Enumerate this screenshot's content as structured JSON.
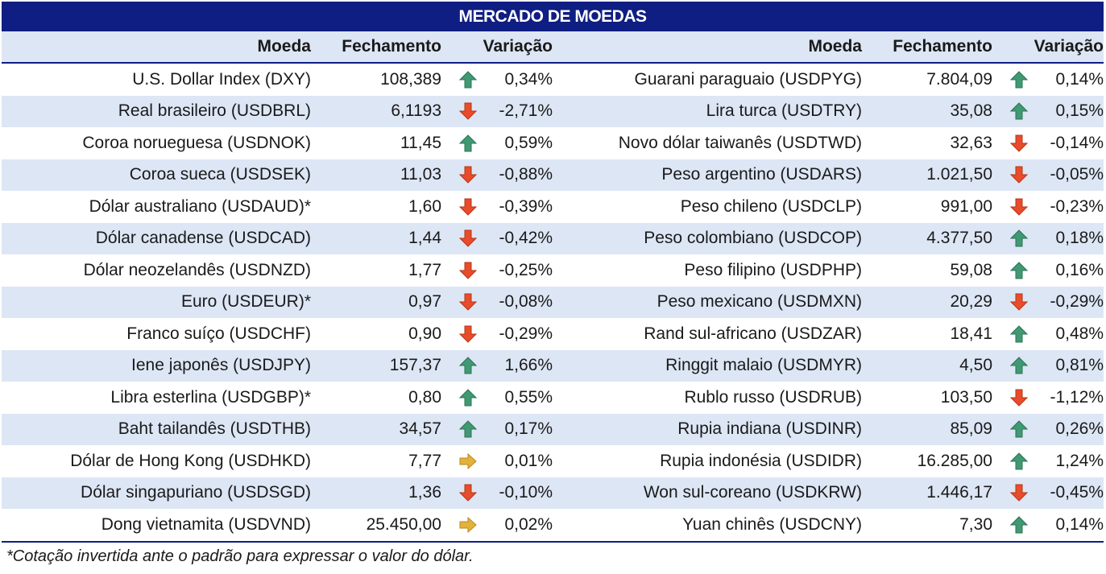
{
  "title": "MERCADO DE MOEDAS",
  "headers": {
    "moeda": "Moeda",
    "fechamento": "Fechamento",
    "variacao": "Variação"
  },
  "colors": {
    "header_bg": "#0f1e82",
    "alt_row": "#dde6f5",
    "up": "#3f9a73",
    "down": "#e84c2a",
    "flat": "#e3b23c"
  },
  "left": [
    {
      "name": "U.S. Dollar Index (DXY)",
      "close": "108,389",
      "dir": "up",
      "var": "0,34%"
    },
    {
      "name": "Real brasileiro (USDBRL)",
      "close": "6,1193",
      "dir": "down",
      "var": "-2,71%"
    },
    {
      "name": "Coroa norueguesa (USDNOK)",
      "close": "11,45",
      "dir": "up",
      "var": "0,59%"
    },
    {
      "name": "Coroa sueca (USDSEK)",
      "close": "11,03",
      "dir": "down",
      "var": "-0,88%"
    },
    {
      "name": "Dólar australiano (USDAUD)*",
      "close": "1,60",
      "dir": "down",
      "var": "-0,39%"
    },
    {
      "name": "Dólar canadense (USDCAD)",
      "close": "1,44",
      "dir": "down",
      "var": "-0,42%"
    },
    {
      "name": "Dólar neozelandês (USDNZD)",
      "close": "1,77",
      "dir": "down",
      "var": "-0,25%"
    },
    {
      "name": "Euro (USDEUR)*",
      "close": "0,97",
      "dir": "down",
      "var": "-0,08%"
    },
    {
      "name": "Franco suíço (USDCHF)",
      "close": "0,90",
      "dir": "down",
      "var": "-0,29%"
    },
    {
      "name": "Iene japonês (USDJPY)",
      "close": "157,37",
      "dir": "up",
      "var": "1,66%"
    },
    {
      "name": "Libra esterlina (USDGBP)*",
      "close": "0,80",
      "dir": "up",
      "var": "0,55%"
    },
    {
      "name": "Baht tailandês (USDTHB)",
      "close": "34,57",
      "dir": "up",
      "var": "0,17%"
    },
    {
      "name": "Dólar de Hong Kong (USDHKD)",
      "close": "7,77",
      "dir": "flat",
      "var": "0,01%"
    },
    {
      "name": "Dólar singapuriano (USDSGD)",
      "close": "1,36",
      "dir": "down",
      "var": "-0,10%"
    },
    {
      "name": "Dong vietnamita (USDVND)",
      "close": "25.450,00",
      "dir": "flat",
      "var": "0,02%"
    }
  ],
  "right": [
    {
      "name": "Guarani paraguaio (USDPYG)",
      "close": "7.804,09",
      "dir": "up",
      "var": "0,14%"
    },
    {
      "name": "Lira turca (USDTRY)",
      "close": "35,08",
      "dir": "up",
      "var": "0,15%"
    },
    {
      "name": "Novo dólar taiwanês (USDTWD)",
      "close": "32,63",
      "dir": "down",
      "var": "-0,14%"
    },
    {
      "name": "Peso argentino (USDARS)",
      "close": "1.021,50",
      "dir": "down",
      "var": "-0,05%"
    },
    {
      "name": "Peso chileno (USDCLP)",
      "close": "991,00",
      "dir": "down",
      "var": "-0,23%"
    },
    {
      "name": "Peso colombiano (USDCOP)",
      "close": "4.377,50",
      "dir": "up",
      "var": "0,18%"
    },
    {
      "name": "Peso filipino (USDPHP)",
      "close": "59,08",
      "dir": "up",
      "var": "0,16%"
    },
    {
      "name": "Peso mexicano (USDMXN)",
      "close": "20,29",
      "dir": "down",
      "var": "-0,29%"
    },
    {
      "name": "Rand sul-africano (USDZAR)",
      "close": "18,41",
      "dir": "up",
      "var": "0,48%"
    },
    {
      "name": "Ringgit malaio (USDMYR)",
      "close": "4,50",
      "dir": "up",
      "var": "0,81%"
    },
    {
      "name": "Rublo russo (USDRUB)",
      "close": "103,50",
      "dir": "down",
      "var": "-1,12%"
    },
    {
      "name": "Rupia indiana (USDINR)",
      "close": "85,09",
      "dir": "up",
      "var": "0,26%"
    },
    {
      "name": "Rupia indonésia (USDIDR)",
      "close": "16.285,00",
      "dir": "up",
      "var": "1,24%"
    },
    {
      "name": "Won sul-coreano (USDKRW)",
      "close": "1.446,17",
      "dir": "down",
      "var": "-0,45%"
    },
    {
      "name": "Yuan chinês (USDCNY)",
      "close": "7,30",
      "dir": "up",
      "var": "0,14%"
    }
  ],
  "footnote": "*Cotação invertida ante o padrão para expressar o valor do dólar."
}
